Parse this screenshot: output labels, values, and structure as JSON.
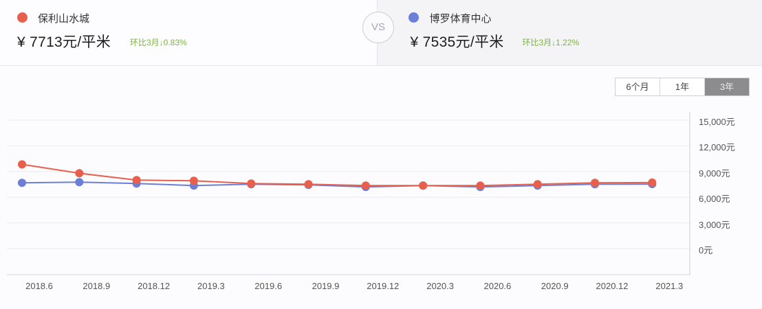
{
  "compare": {
    "left": {
      "name": "保利山水城",
      "price": "¥ 7713元/平米",
      "change": "环比3月↓0.83%",
      "color": "#e8604c"
    },
    "vs_label": "VS",
    "right": {
      "name": "博罗体育中心",
      "price": "¥ 7535元/平米",
      "change": "环比3月↓1.22%",
      "color": "#6b7fd6"
    }
  },
  "range_selector": {
    "options": [
      {
        "label": "6个月",
        "active": false
      },
      {
        "label": "1年",
        "active": false
      },
      {
        "label": "3年",
        "active": true
      }
    ]
  },
  "chart_data": {
    "type": "line",
    "title": "",
    "xlabel": "",
    "ylabel": "",
    "ylim": [
      0,
      15000
    ],
    "yticks": [
      "15,000元",
      "12,000元",
      "9,000元",
      "6,000元",
      "3,000元",
      "0元"
    ],
    "categories": [
      "2018.6",
      "2018.9",
      "2018.12",
      "2019.3",
      "2019.6",
      "2019.9",
      "2019.12",
      "2020.3",
      "2020.6",
      "2020.9",
      "2020.12",
      "2021.3"
    ],
    "grid": true,
    "legend_position": "top",
    "series": [
      {
        "name": "保利山水城",
        "color": "#e8604c",
        "values": [
          9840,
          8800,
          8000,
          7920,
          7600,
          7520,
          7360,
          7360,
          7360,
          7520,
          7680,
          7713
        ]
      },
      {
        "name": "博罗体育中心",
        "color": "#6b7fd6",
        "values": [
          7680,
          7760,
          7600,
          7360,
          7520,
          7440,
          7200,
          7360,
          7200,
          7360,
          7520,
          7535
        ]
      }
    ]
  }
}
